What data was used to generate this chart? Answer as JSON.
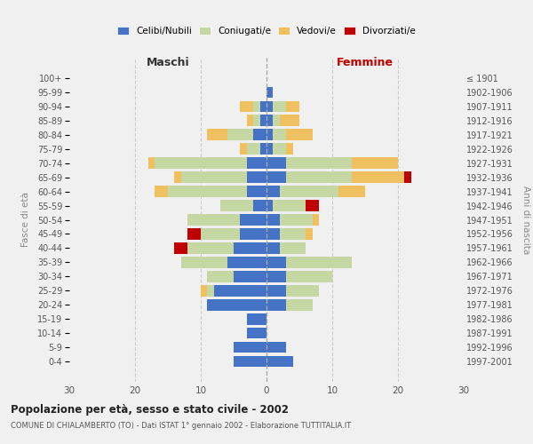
{
  "age_groups": [
    "0-4",
    "5-9",
    "10-14",
    "15-19",
    "20-24",
    "25-29",
    "30-34",
    "35-39",
    "40-44",
    "45-49",
    "50-54",
    "55-59",
    "60-64",
    "65-69",
    "70-74",
    "75-79",
    "80-84",
    "85-89",
    "90-94",
    "95-99",
    "100+"
  ],
  "birth_years": [
    "1997-2001",
    "1992-1996",
    "1987-1991",
    "1982-1986",
    "1977-1981",
    "1972-1976",
    "1967-1971",
    "1962-1966",
    "1957-1961",
    "1952-1956",
    "1947-1951",
    "1942-1946",
    "1937-1941",
    "1932-1936",
    "1927-1931",
    "1922-1926",
    "1917-1921",
    "1912-1916",
    "1907-1911",
    "1902-1906",
    "≤ 1901"
  ],
  "maschi_celibi": [
    5,
    5,
    3,
    3,
    9,
    8,
    5,
    6,
    5,
    4,
    4,
    2,
    3,
    3,
    3,
    1,
    2,
    1,
    1,
    0,
    0
  ],
  "maschi_coniugati": [
    0,
    0,
    0,
    0,
    0,
    1,
    4,
    7,
    7,
    6,
    8,
    5,
    12,
    10,
    14,
    2,
    4,
    1,
    1,
    0,
    0
  ],
  "maschi_vedovi": [
    0,
    0,
    0,
    0,
    0,
    1,
    0,
    0,
    0,
    0,
    0,
    0,
    2,
    1,
    1,
    1,
    3,
    1,
    2,
    0,
    0
  ],
  "maschi_divorziati": [
    0,
    0,
    0,
    0,
    0,
    0,
    0,
    0,
    2,
    2,
    0,
    0,
    0,
    0,
    0,
    0,
    0,
    0,
    0,
    0,
    0
  ],
  "femmine_celibi": [
    4,
    3,
    0,
    0,
    3,
    3,
    3,
    3,
    2,
    2,
    2,
    1,
    2,
    3,
    3,
    1,
    1,
    1,
    1,
    1,
    0
  ],
  "femmine_coniugati": [
    0,
    0,
    0,
    0,
    4,
    5,
    7,
    10,
    4,
    4,
    5,
    5,
    9,
    10,
    10,
    2,
    2,
    1,
    2,
    0,
    0
  ],
  "femmine_vedovi": [
    0,
    0,
    0,
    0,
    0,
    0,
    0,
    0,
    0,
    1,
    1,
    0,
    4,
    8,
    7,
    1,
    4,
    3,
    2,
    0,
    0
  ],
  "femmine_divorziati": [
    0,
    0,
    0,
    0,
    0,
    0,
    0,
    0,
    0,
    0,
    0,
    2,
    0,
    1,
    0,
    0,
    0,
    0,
    0,
    0,
    0
  ],
  "colors": {
    "celibi": "#4472c4",
    "coniugati": "#c5d8a4",
    "vedovi": "#f0c060",
    "divorziati": "#c00000"
  },
  "xlim": 30,
  "title": "Popolazione per età, sesso e stato civile - 2002",
  "subtitle": "COMUNE DI CHIALAMBERTO (TO) - Dati ISTAT 1° gennaio 2002 - Elaborazione TUTTITALIA.IT",
  "ylabel_left": "Fasce di età",
  "ylabel_right": "Anni di nascita",
  "xlabel_maschi": "Maschi",
  "xlabel_femmine": "Femmine",
  "bg_color": "#f0f0f0"
}
